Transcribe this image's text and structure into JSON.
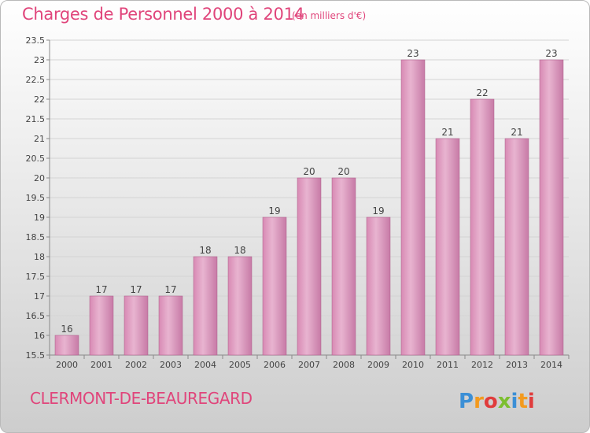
{
  "header": {
    "title": "Charges de Personnel 2000 à 2014",
    "subtitle": "(en milliers d'€)"
  },
  "footer": {
    "commune": "CLERMONT-DE-BEAUREGARD",
    "logo_text": "Proxiti",
    "logo_letters": [
      {
        "ch": "P",
        "color": "#3b8fd6"
      },
      {
        "ch": "r",
        "color": "#f39a1e"
      },
      {
        "ch": "o",
        "color": "#e03c3c"
      },
      {
        "ch": "x",
        "color": "#7cbf2f"
      },
      {
        "ch": "i",
        "color": "#3b8fd6"
      },
      {
        "ch": "t",
        "color": "#f39a1e"
      },
      {
        "ch": "i",
        "color": "#e03c3c"
      }
    ]
  },
  "colors": {
    "title": "#e0457b",
    "bar_left": "#d88ab4",
    "bar_mid": "#e8b4d0",
    "bar_right": "#c77aa6",
    "bar_edge": "#b26590"
  },
  "chart_data": {
    "type": "bar",
    "categories": [
      "2000",
      "2001",
      "2002",
      "2003",
      "2004",
      "2005",
      "2006",
      "2007",
      "2008",
      "2009",
      "2010",
      "2011",
      "2012",
      "2013",
      "2014"
    ],
    "values": [
      16,
      17,
      17,
      17,
      18,
      18,
      19,
      20,
      20,
      19,
      23,
      21,
      22,
      21,
      23
    ],
    "title": "Charges de Personnel 2000 à 2014",
    "ylim": [
      15.5,
      23.5
    ],
    "yticks": [
      15.5,
      16,
      16.5,
      17,
      17.5,
      18,
      18.5,
      19,
      19.5,
      20,
      20.5,
      21,
      21.5,
      22,
      22.5,
      23,
      23.5
    ],
    "grid": true
  }
}
